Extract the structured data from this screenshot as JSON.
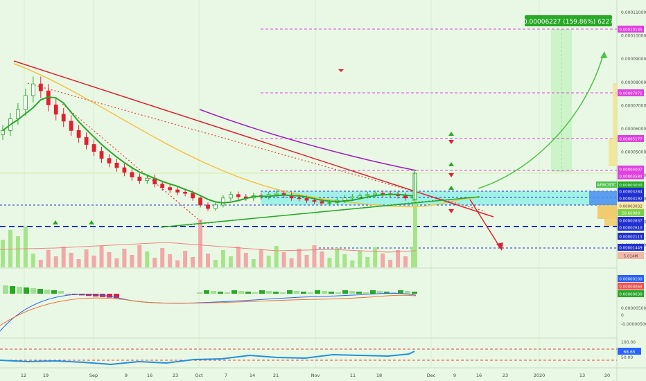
{
  "chart_data": {
    "type": "candlestick",
    "symbol_tag": "AEBCBTC",
    "measure_label": "0.00006227 (159.86%) 6227",
    "time_ticks": [
      "12",
      "19",
      "Sep",
      "9",
      "16",
      "23",
      "Oct",
      "7",
      "14",
      "21",
      "Nov",
      "11",
      "18",
      "Dec",
      "9",
      "16",
      "23",
      "2020",
      "13",
      "20"
    ],
    "price_axis_ticks": [
      "0.00011000",
      "0.00010000",
      "0.00009000",
      "0.00008000",
      "0.00007000",
      "0.00006000",
      "0.00005000",
      "0.00004000",
      "0.00003000",
      "0.00002000",
      "0.00001000"
    ],
    "price_ylim": [
      1e-05,
      0.00011
    ],
    "price_markers": [
      {
        "label": "0.00010135",
        "color": "#e040e0"
      },
      {
        "label": "0.00007071",
        "color": "#e040e0"
      },
      {
        "label": "0.00005177",
        "color": "#e040e0"
      },
      {
        "label": "0.00004007",
        "color": "#e040e0"
      },
      {
        "label": "0.00003584",
        "color": "#e040e0"
      },
      {
        "label": "0.00003284",
        "color": "#2030d0"
      },
      {
        "label": "0.00003192",
        "color": "#2030d0"
      },
      {
        "label": "0.00003032",
        "color": "#ffe6a0"
      },
      {
        "label": "28.60088",
        "color": "#7ad04a"
      },
      {
        "label": "0.00002637",
        "color": "#2030d0"
      },
      {
        "label": "0.00002610",
        "color": "#2030d0"
      },
      {
        "label": "0.00002113",
        "color": "#2030d0"
      },
      {
        "label": "0.00001449",
        "color": "#2030d0"
      },
      {
        "label": "5.014M",
        "color": "#f4b8a8"
      }
    ],
    "current_price_tag": "0.00003030",
    "macd_ticks": [
      "0.00000500",
      "0",
      "-0.00000500"
    ],
    "macd_markers": [
      {
        "label": "0.00000100",
        "color": "#2962ff"
      },
      {
        "label": "0.00000069",
        "color": "#f05050"
      },
      {
        "label": "0.00000030",
        "color": "#27a827"
      }
    ],
    "rsi_ticks": [
      "100.00",
      "50.00"
    ],
    "rsi_marker": "68.65",
    "closes": [
      5.9e-05,
      6.4e-05,
      6.8e-05,
      7.4e-05,
      7.9e-05,
      7.6e-05,
      7e-05,
      6.6e-05,
      6.3e-05,
      5.9e-05,
      5.6e-05,
      5.3e-05,
      5e-05,
      4.7e-05,
      4.5e-05,
      4.3e-05,
      4.1e-05,
      3.9e-05,
      3.75e-05,
      3.85e-05,
      3.6e-05,
      3.45e-05,
      3.35e-05,
      3.25e-05,
      3.2e-05,
      3e-05,
      2.7e-05,
      2.55e-05,
      2.7e-05,
      3e-05,
      3.15e-05,
      3.05e-05,
      3e-05,
      3.1e-05,
      3.05e-05,
      3.15e-05,
      3.2e-05,
      3.12e-05,
      3e-05,
      2.98e-05,
      2.9e-05,
      2.85e-05,
      2.78e-05,
      2.8e-05,
      2.9e-05,
      3e-05,
      3.05e-05,
      3.1e-05,
      3.15e-05,
      3.2e-05,
      3.18e-05,
      3.15e-05,
      3.1e-05,
      3e-05,
      3.03e-05
    ]
  }
}
